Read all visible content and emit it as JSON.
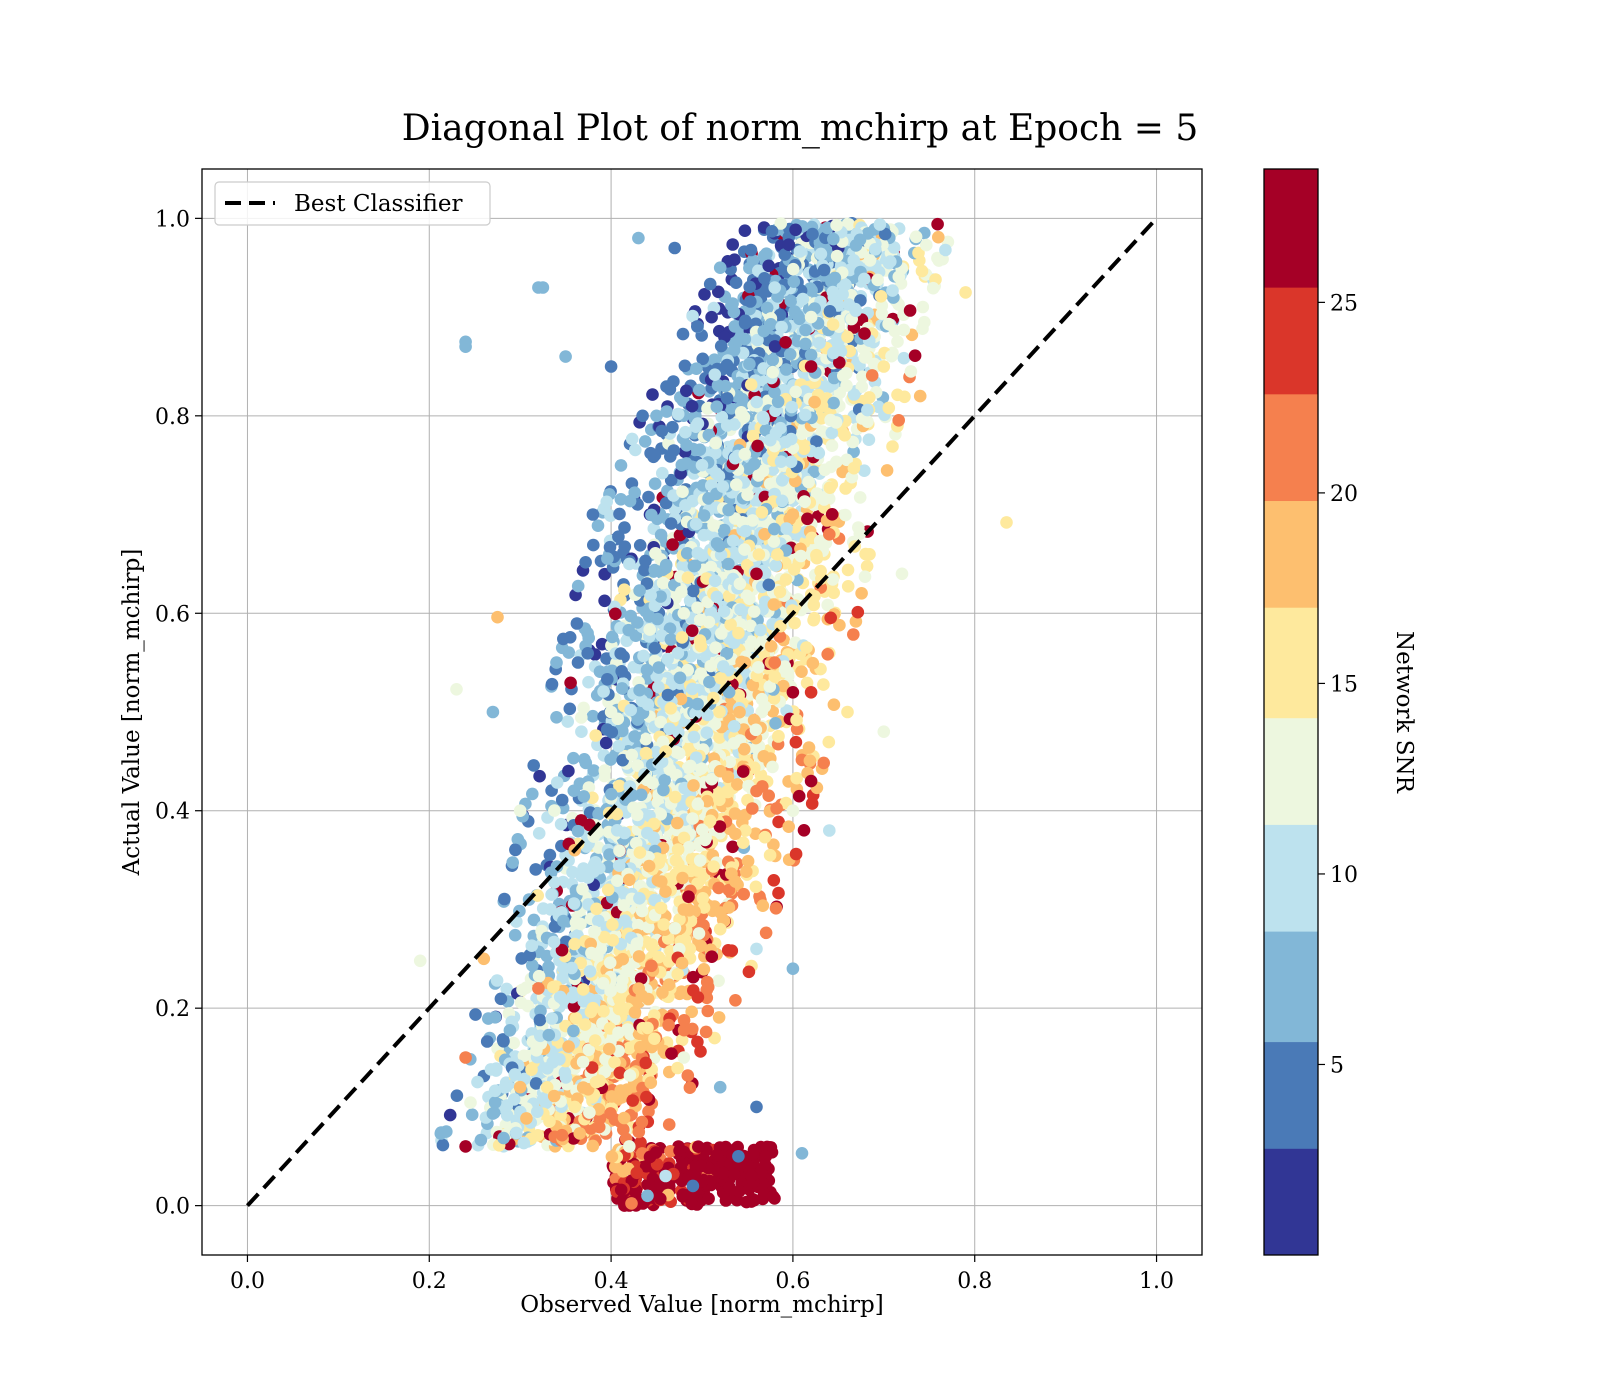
{
  "chart_data": {
    "type": "scatter",
    "title": "Diagonal Plot of norm_mchirp at Epoch = 5",
    "xlabel": "Observed Value [norm_mchirp]",
    "ylabel": "Actual Value [norm_mchirp]",
    "xlim": [
      -0.05,
      1.05
    ],
    "ylim": [
      -0.05,
      1.05
    ],
    "xticks": [
      "0.0",
      "0.2",
      "0.4",
      "0.6",
      "0.8",
      "1.0"
    ],
    "yticks": [
      "0.0",
      "0.2",
      "0.4",
      "0.6",
      "0.8",
      "1.0"
    ],
    "grid": true,
    "legend": {
      "placement": "top-left",
      "entries": [
        {
          "label": "Best Classifier",
          "style": "dashed",
          "color": "#000000"
        }
      ]
    },
    "reference_line": {
      "name": "Best Classifier",
      "from": [
        0,
        0
      ],
      "to": [
        1,
        1
      ]
    },
    "colorbar": {
      "label": "Network SNR",
      "range": [
        0,
        28.5
      ],
      "ticks": [
        "5",
        "10",
        "15",
        "20",
        "25"
      ],
      "bins": [
        {
          "from": 0.0,
          "to": 2.8,
          "color": "#313695"
        },
        {
          "from": 2.8,
          "to": 5.6,
          "color": "#4a7ab7"
        },
        {
          "from": 5.6,
          "to": 8.5,
          "color": "#82b7d7"
        },
        {
          "from": 8.5,
          "to": 11.3,
          "color": "#bde2ee"
        },
        {
          "from": 11.3,
          "to": 14.1,
          "color": "#edf7df"
        },
        {
          "from": 14.1,
          "to": 17.0,
          "color": "#fee99d"
        },
        {
          "from": 17.0,
          "to": 19.8,
          "color": "#fdbf6f"
        },
        {
          "from": 19.8,
          "to": 22.6,
          "color": "#f5804e"
        },
        {
          "from": 22.6,
          "to": 25.4,
          "color": "#da362a"
        },
        {
          "from": 25.4,
          "to": 28.5,
          "color": "#a50026"
        }
      ]
    },
    "series": [
      {
        "points_description_sample": [
          [
            0.43,
            0.98,
            6
          ],
          [
            0.47,
            0.97,
            3
          ],
          [
            0.52,
            0.95,
            7
          ],
          [
            0.58,
            0.93,
            10
          ],
          [
            0.62,
            0.9,
            13
          ],
          [
            0.66,
            0.88,
            15
          ],
          [
            0.7,
            0.85,
            16
          ],
          [
            0.74,
            0.82,
            17
          ],
          [
            0.4,
            0.85,
            4
          ],
          [
            0.45,
            0.8,
            8
          ],
          [
            0.5,
            0.75,
            10
          ],
          [
            0.55,
            0.72,
            12
          ],
          [
            0.6,
            0.7,
            17
          ],
          [
            0.64,
            0.68,
            20
          ],
          [
            0.68,
            0.66,
            16
          ],
          [
            0.72,
            0.64,
            14
          ],
          [
            0.38,
            0.7,
            5
          ],
          [
            0.42,
            0.65,
            9
          ],
          [
            0.48,
            0.6,
            13
          ],
          [
            0.54,
            0.58,
            16
          ],
          [
            0.58,
            0.55,
            22
          ],
          [
            0.62,
            0.52,
            24
          ],
          [
            0.66,
            0.5,
            15
          ],
          [
            0.7,
            0.48,
            12
          ],
          [
            0.34,
            0.55,
            8
          ],
          [
            0.4,
            0.5,
            12
          ],
          [
            0.46,
            0.46,
            16
          ],
          [
            0.52,
            0.44,
            18
          ],
          [
            0.56,
            0.42,
            21
          ],
          [
            0.6,
            0.4,
            14
          ],
          [
            0.64,
            0.38,
            11
          ],
          [
            0.3,
            0.4,
            13
          ],
          [
            0.36,
            0.36,
            17
          ],
          [
            0.42,
            0.33,
            19
          ],
          [
            0.48,
            0.3,
            17
          ],
          [
            0.52,
            0.28,
            15
          ],
          [
            0.56,
            0.26,
            10
          ],
          [
            0.6,
            0.24,
            8
          ],
          [
            0.26,
            0.25,
            18
          ],
          [
            0.32,
            0.22,
            20
          ],
          [
            0.38,
            0.2,
            16
          ],
          [
            0.44,
            0.18,
            15
          ],
          [
            0.48,
            0.15,
            12
          ],
          [
            0.52,
            0.12,
            6
          ],
          [
            0.56,
            0.1,
            4
          ],
          [
            0.24,
            0.15,
            21
          ],
          [
            0.3,
            0.12,
            19
          ],
          [
            0.36,
            0.1,
            15
          ],
          [
            0.42,
            0.06,
            12
          ],
          [
            0.46,
            0.03,
            9
          ],
          [
            0.44,
            0.01,
            7
          ],
          [
            0.49,
            0.02,
            4
          ],
          [
            0.54,
            0.05,
            3
          ],
          [
            0.24,
            0.87,
            7
          ],
          [
            0.32,
            0.93,
            8
          ],
          [
            0.62,
            0.85,
            26
          ],
          [
            0.56,
            0.64,
            27
          ],
          [
            0.6,
            0.52,
            27
          ],
          [
            0.62,
            0.43,
            26
          ],
          [
            0.24,
            0.06,
            27
          ]
        ]
      }
    ]
  }
}
